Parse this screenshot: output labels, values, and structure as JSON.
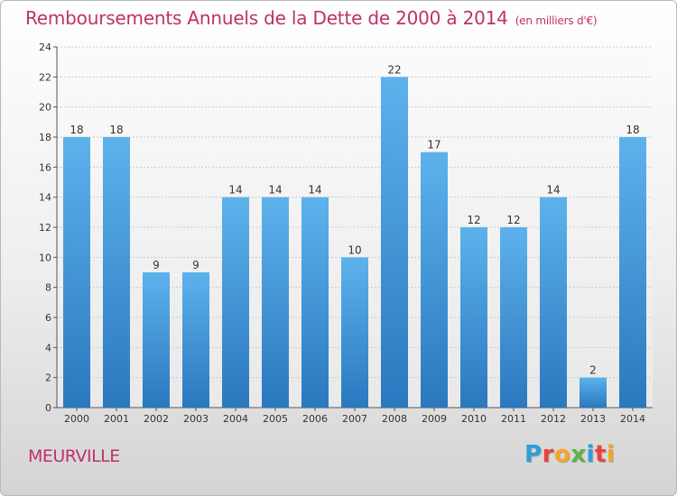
{
  "header": {
    "title": "Remboursements Annuels de la Dette de 2000 à 2014",
    "unit": "(en milliers d'€)"
  },
  "footer": {
    "commune": "MEURVILLE",
    "logo_letters": [
      "P",
      "r",
      "o",
      "x",
      "i",
      "t",
      "i"
    ],
    "logo_colors": [
      "#2f9fd8",
      "#e8433b",
      "#f6a623",
      "#5bb544",
      "#2f9fd8",
      "#e8433b",
      "#f6a623"
    ]
  },
  "chart_data": {
    "type": "bar",
    "categories": [
      "2000",
      "2001",
      "2002",
      "2003",
      "2004",
      "2005",
      "2006",
      "2007",
      "2008",
      "2009",
      "2010",
      "2011",
      "2012",
      "2013",
      "2014"
    ],
    "values": [
      18,
      18,
      9,
      9,
      14,
      14,
      14,
      10,
      22,
      17,
      12,
      12,
      14,
      2,
      18
    ],
    "ylim": [
      0,
      24
    ],
    "yticks": [
      0,
      2,
      4,
      6,
      8,
      10,
      12,
      14,
      16,
      18,
      20,
      22,
      24
    ],
    "grid": true,
    "bar_color": "#4a9fdd",
    "bar_color_dark": "#2d7cc2"
  }
}
